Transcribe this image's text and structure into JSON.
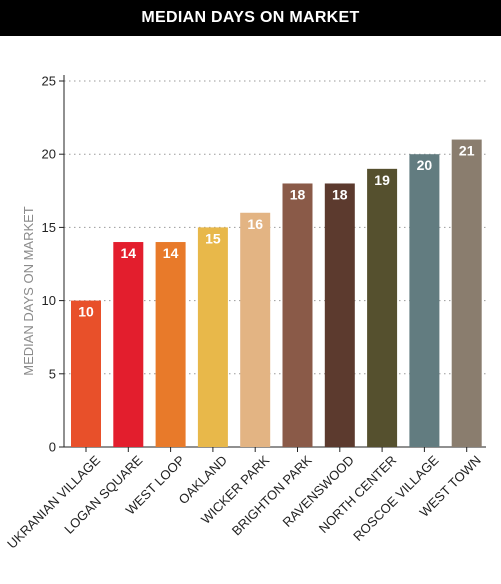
{
  "header": {
    "title": "MEDIAN DAYS ON MARKET"
  },
  "chart_data": {
    "type": "bar",
    "title": "MEDIAN DAYS ON MARKET",
    "xlabel": "",
    "ylabel": "MEDIAN DAYS ON MARKET",
    "ylim": [
      0,
      25
    ],
    "yticks": [
      0,
      5,
      10,
      15,
      20,
      25
    ],
    "grid": true,
    "legend": "none",
    "categories": [
      "UKRANIAN VILLAGE",
      "LOGAN SQUARE",
      "WEST LOOP",
      "OAKLAND",
      "WICKER PARK",
      "BRIGHTON PARK",
      "RAVENSWOOD",
      "NORTH CENTER",
      "ROSCOE VILLAGE",
      "WEST TOWN"
    ],
    "values": [
      10,
      14,
      14,
      15,
      16,
      18,
      18,
      19,
      20,
      21
    ],
    "colors": [
      "#e8502a",
      "#e31e2d",
      "#e87a2a",
      "#e8b84a",
      "#e3b483",
      "#8a5a48",
      "#5c3a2e",
      "#55502e",
      "#627c80",
      "#8a7d6e"
    ]
  }
}
